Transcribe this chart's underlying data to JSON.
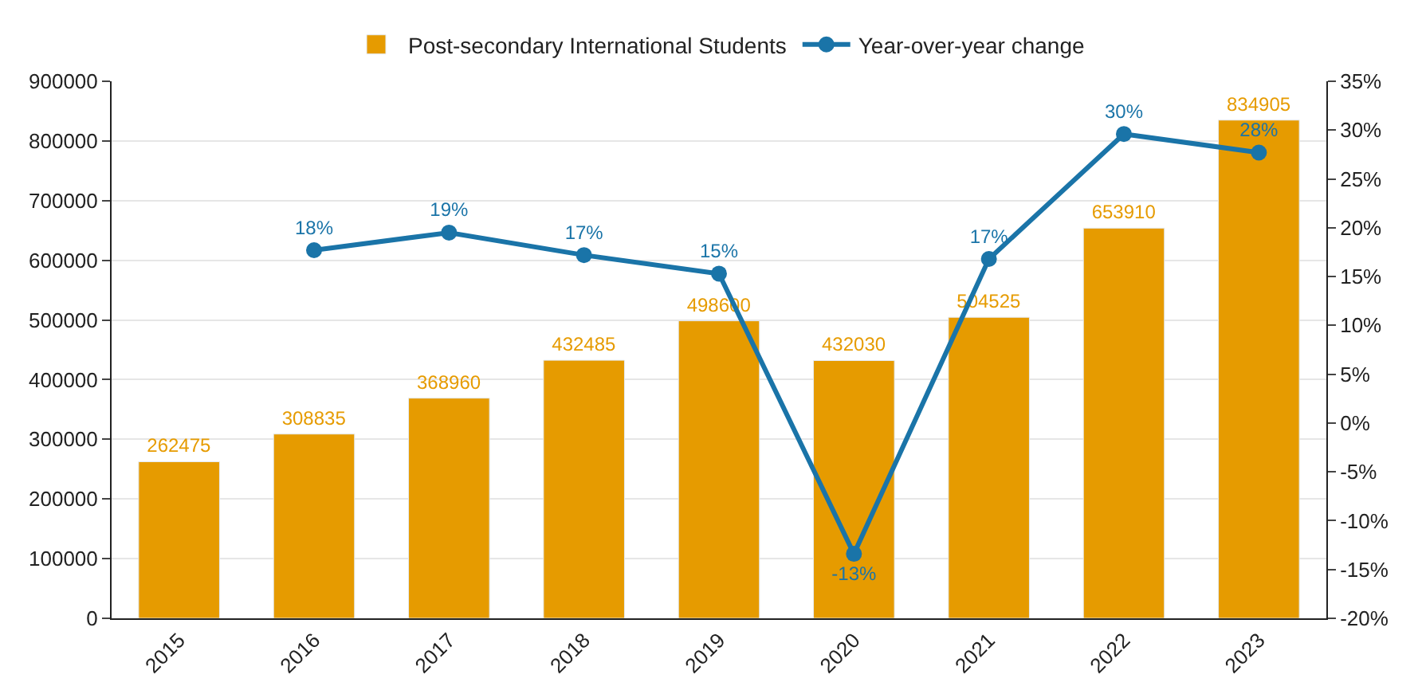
{
  "chart_data": {
    "type": "bar",
    "categories": [
      "2015",
      "2016",
      "2017",
      "2018",
      "2019",
      "2020",
      "2021",
      "2022",
      "2023"
    ],
    "series": [
      {
        "name": "Post-secondary International Students",
        "color": "#e69b00",
        "values": [
          262475,
          308835,
          368960,
          432485,
          498600,
          432030,
          504525,
          653910,
          834905
        ],
        "value_labels": [
          "262475",
          "308835",
          "368960",
          "432485",
          "498600",
          "432030",
          "504525",
          "653910",
          "834905"
        ]
      },
      {
        "name": "Year-over-year change",
        "type": "line",
        "axis": "y2",
        "color": "#1a74a8",
        "marker": "circle",
        "values": [
          null,
          17.7,
          19.5,
          17.2,
          15.3,
          -13.4,
          16.8,
          29.6,
          27.7
        ],
        "value_labels": [
          null,
          "18%",
          "19%",
          "17%",
          "15%",
          "-13%",
          "17%",
          "30%",
          "28%"
        ]
      }
    ],
    "ylim": [
      0,
      900000
    ],
    "yticks": [
      0,
      100000,
      200000,
      300000,
      400000,
      500000,
      600000,
      700000,
      800000,
      900000
    ],
    "y2lim": [
      -20,
      35
    ],
    "y2ticks": [
      {
        "value": -20,
        "label": "-20%"
      },
      {
        "value": -15,
        "label": "-15%"
      },
      {
        "value": -10,
        "label": "-10%"
      },
      {
        "value": -5,
        "label": "-5%"
      },
      {
        "value": 0,
        "label": "0%"
      },
      {
        "value": 5,
        "label": "5%"
      },
      {
        "value": 10,
        "label": "10%"
      },
      {
        "value": 15,
        "label": "15%"
      },
      {
        "value": 20,
        "label": "20%"
      },
      {
        "value": 25,
        "label": "25%"
      },
      {
        "value": 30,
        "label": "30%"
      },
      {
        "value": 35,
        "label": "35%"
      }
    ],
    "grid": "y",
    "legend": "top"
  }
}
